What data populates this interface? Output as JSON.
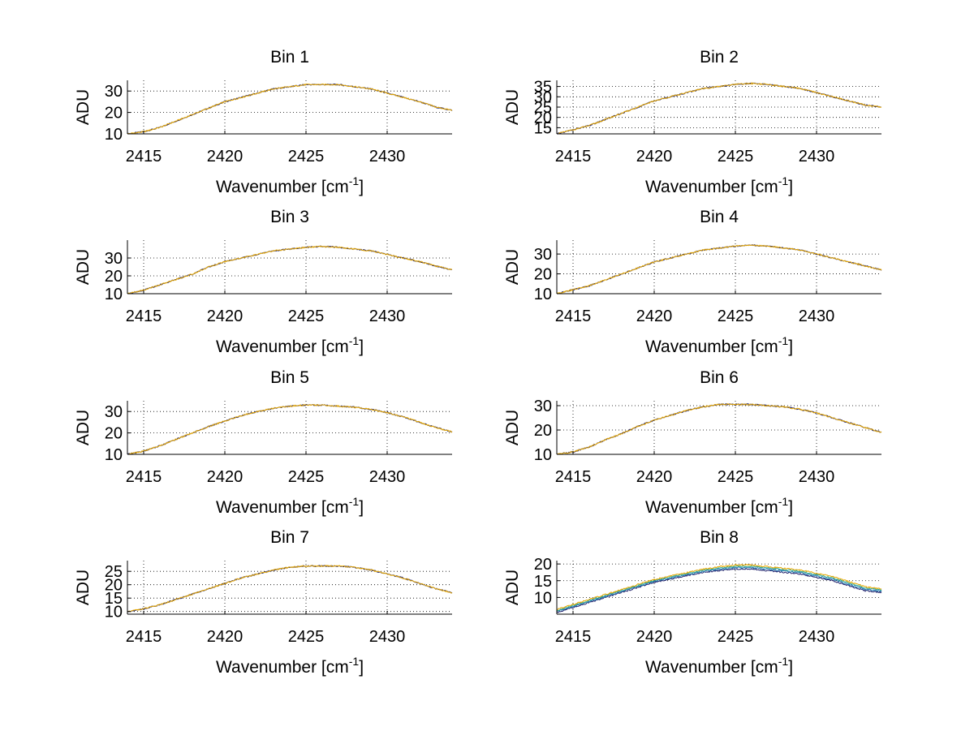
{
  "figure": {
    "background": "#ffffff",
    "grid_color": "#000000"
  },
  "chart_data": [
    {
      "type": "line",
      "title": "Bin 1",
      "xlabel": "Wavenumber [cm",
      "xlabel_sup": "-1",
      "xlabel_end": "]",
      "ylabel": "ADU",
      "xlim": [
        2414,
        2434
      ],
      "ylim": [
        10,
        35
      ],
      "xticks": [
        2415,
        2420,
        2425,
        2430
      ],
      "yticks": [
        10,
        20,
        30
      ],
      "grid": true,
      "series": [
        {
          "name": "line-1",
          "color": "#1f1f6a",
          "values": [
            10,
            11,
            13,
            16,
            19,
            22,
            25,
            27,
            29,
            31,
            32,
            33,
            33,
            33,
            32,
            31,
            29,
            27,
            25,
            22.5,
            21
          ]
        },
        {
          "name": "line-2",
          "color": "#e6a800",
          "values": [
            10,
            11,
            13,
            16,
            19,
            22,
            25,
            27,
            29,
            31,
            32,
            33,
            33,
            33,
            32,
            31,
            29,
            27,
            25,
            22.5,
            21
          ]
        }
      ],
      "x": [
        2414,
        2415,
        2416,
        2417,
        2418,
        2419,
        2420,
        2421,
        2422,
        2423,
        2424,
        2425,
        2426,
        2427,
        2428,
        2429,
        2430,
        2431,
        2432,
        2433,
        2434
      ]
    },
    {
      "type": "line",
      "title": "Bin 2",
      "xlabel": "Wavenumber [cm",
      "xlabel_sup": "-1",
      "xlabel_end": "]",
      "ylabel": "ADU",
      "xlim": [
        2414,
        2434
      ],
      "ylim": [
        12,
        38
      ],
      "xticks": [
        2415,
        2420,
        2425,
        2430
      ],
      "yticks": [
        15,
        20,
        25,
        30,
        35
      ],
      "grid": true,
      "series": [
        {
          "name": "line-1",
          "color": "#1f1f6a",
          "values": [
            12,
            14,
            16,
            19,
            22,
            25,
            28,
            30,
            32,
            34,
            35,
            36,
            36.5,
            36,
            35,
            34,
            32,
            30,
            28,
            26,
            25
          ]
        },
        {
          "name": "line-2",
          "color": "#e6a800",
          "values": [
            12,
            14,
            16,
            19,
            22,
            25,
            28,
            30,
            32,
            34,
            35,
            36,
            36.5,
            36,
            35,
            34,
            32,
            30,
            28,
            26,
            25
          ]
        }
      ],
      "x": [
        2414,
        2415,
        2416,
        2417,
        2418,
        2419,
        2420,
        2421,
        2422,
        2423,
        2424,
        2425,
        2426,
        2427,
        2428,
        2429,
        2430,
        2431,
        2432,
        2433,
        2434
      ]
    },
    {
      "type": "line",
      "title": "Bin 3",
      "xlabel": "Wavenumber [cm",
      "xlabel_sup": "-1",
      "xlabel_end": "]",
      "ylabel": "ADU",
      "xlim": [
        2414,
        2434
      ],
      "ylim": [
        10,
        40
      ],
      "xticks": [
        2415,
        2420,
        2425,
        2430
      ],
      "yticks": [
        10,
        20,
        30
      ],
      "grid": true,
      "series": [
        {
          "name": "line-1",
          "color": "#1f1f6a",
          "values": [
            10,
            12,
            15,
            18,
            21,
            25,
            28,
            30,
            32,
            34,
            35,
            36,
            36.5,
            36,
            35,
            34,
            32,
            30,
            28,
            25.5,
            23.5
          ]
        },
        {
          "name": "line-2",
          "color": "#e6a800",
          "values": [
            10,
            12,
            15,
            18,
            21,
            25,
            28,
            30,
            32,
            34,
            35,
            36,
            36.5,
            36,
            35,
            34,
            32,
            30,
            28,
            25.5,
            23.5
          ]
        }
      ],
      "x": [
        2414,
        2415,
        2416,
        2417,
        2418,
        2419,
        2420,
        2421,
        2422,
        2423,
        2424,
        2425,
        2426,
        2427,
        2428,
        2429,
        2430,
        2431,
        2432,
        2433,
        2434
      ]
    },
    {
      "type": "line",
      "title": "Bin 4",
      "xlabel": "Wavenumber [cm",
      "xlabel_sup": "-1",
      "xlabel_end": "]",
      "ylabel": "ADU",
      "xlim": [
        2414,
        2434
      ],
      "ylim": [
        10,
        37
      ],
      "xticks": [
        2415,
        2420,
        2425,
        2430
      ],
      "yticks": [
        10,
        20,
        30
      ],
      "grid": true,
      "series": [
        {
          "name": "line-1",
          "color": "#1f1f6a",
          "values": [
            10,
            12,
            14,
            17,
            20,
            23,
            26,
            28,
            30,
            32,
            33,
            34,
            34.5,
            34,
            33,
            32,
            30,
            28,
            26,
            24,
            22
          ]
        },
        {
          "name": "line-2",
          "color": "#e6a800",
          "values": [
            10,
            12,
            14,
            17,
            20,
            23,
            26,
            28,
            30,
            32,
            33,
            34,
            34.5,
            34,
            33,
            32,
            30,
            28,
            26,
            24,
            22
          ]
        }
      ],
      "x": [
        2414,
        2415,
        2416,
        2417,
        2418,
        2419,
        2420,
        2421,
        2422,
        2423,
        2424,
        2425,
        2426,
        2427,
        2428,
        2429,
        2430,
        2431,
        2432,
        2433,
        2434
      ]
    },
    {
      "type": "line",
      "title": "Bin 5",
      "xlabel": "Wavenumber [cm",
      "xlabel_sup": "-1",
      "xlabel_end": "]",
      "ylabel": "ADU",
      "xlim": [
        2414,
        2434
      ],
      "ylim": [
        10,
        35
      ],
      "xticks": [
        2415,
        2420,
        2425,
        2430
      ],
      "yticks": [
        10,
        20,
        30
      ],
      "grid": true,
      "series": [
        {
          "name": "line-1",
          "color": "#1f1f6a",
          "values": [
            10,
            11.5,
            14,
            17,
            20,
            23,
            25.5,
            28,
            30,
            31.5,
            32.5,
            33,
            33,
            32.5,
            32,
            31,
            29.5,
            27.5,
            25,
            22.5,
            20.5
          ]
        },
        {
          "name": "line-2",
          "color": "#e6a800",
          "values": [
            10,
            11.5,
            14,
            17,
            20,
            23,
            25.5,
            28,
            30,
            31.5,
            32.5,
            33,
            33,
            32.5,
            32,
            31,
            29.5,
            27.5,
            25,
            22.5,
            20.5
          ]
        }
      ],
      "x": [
        2414,
        2415,
        2416,
        2417,
        2418,
        2419,
        2420,
        2421,
        2422,
        2423,
        2424,
        2425,
        2426,
        2427,
        2428,
        2429,
        2430,
        2431,
        2432,
        2433,
        2434
      ]
    },
    {
      "type": "line",
      "title": "Bin 6",
      "xlabel": "Wavenumber [cm",
      "xlabel_sup": "-1",
      "xlabel_end": "]",
      "ylabel": "ADU",
      "xlim": [
        2414,
        2434
      ],
      "ylim": [
        10,
        32
      ],
      "xticks": [
        2415,
        2420,
        2425,
        2430
      ],
      "yticks": [
        10,
        20,
        30
      ],
      "grid": true,
      "series": [
        {
          "name": "line-1",
          "color": "#1f1f6a",
          "values": [
            10,
            11,
            13,
            16,
            18.5,
            21.5,
            24,
            26,
            28,
            29.5,
            30.5,
            30.5,
            30.5,
            30,
            29.5,
            28.5,
            27,
            25,
            23,
            21,
            19
          ]
        },
        {
          "name": "line-2",
          "color": "#e6a800",
          "values": [
            10,
            11,
            13,
            16,
            18.5,
            21.5,
            24,
            26,
            28,
            29.5,
            30.5,
            30.5,
            30.5,
            30,
            29.5,
            28.5,
            27,
            25,
            23,
            21,
            19
          ]
        }
      ],
      "x": [
        2414,
        2415,
        2416,
        2417,
        2418,
        2419,
        2420,
        2421,
        2422,
        2423,
        2424,
        2425,
        2426,
        2427,
        2428,
        2429,
        2430,
        2431,
        2432,
        2433,
        2434
      ]
    },
    {
      "type": "line",
      "title": "Bin 7",
      "xlabel": "Wavenumber [cm",
      "xlabel_sup": "-1",
      "xlabel_end": "]",
      "ylabel": "ADU",
      "xlim": [
        2414,
        2434
      ],
      "ylim": [
        9,
        29
      ],
      "xticks": [
        2415,
        2420,
        2425,
        2430
      ],
      "yticks": [
        10,
        15,
        20,
        25
      ],
      "grid": true,
      "series": [
        {
          "name": "line-1",
          "color": "#1f1f6a",
          "values": [
            10,
            11,
            12.5,
            14.5,
            16.5,
            18.5,
            20.5,
            22.5,
            24,
            25.5,
            26.5,
            27,
            27,
            27,
            26.5,
            25.5,
            24,
            22.5,
            20.5,
            18.5,
            17
          ]
        },
        {
          "name": "line-2",
          "color": "#e6a800",
          "values": [
            10,
            11,
            12.5,
            14.5,
            16.5,
            18.5,
            20.5,
            22.5,
            24,
            25.5,
            26.5,
            27,
            27,
            27,
            26.5,
            25.5,
            24,
            22.5,
            20.5,
            18.5,
            17
          ]
        }
      ],
      "x": [
        2414,
        2415,
        2416,
        2417,
        2418,
        2419,
        2420,
        2421,
        2422,
        2423,
        2424,
        2425,
        2426,
        2427,
        2428,
        2429,
        2430,
        2431,
        2432,
        2433,
        2434
      ]
    },
    {
      "type": "line",
      "title": "Bin 8",
      "xlabel": "Wavenumber [cm",
      "xlabel_sup": "-1",
      "xlabel_end": "]",
      "ylabel": "ADU",
      "xlim": [
        2414,
        2434
      ],
      "ylim": [
        5,
        21
      ],
      "xticks": [
        2415,
        2420,
        2425,
        2430
      ],
      "yticks": [
        10,
        15,
        20
      ],
      "grid": true,
      "series": [
        {
          "name": "line-1",
          "color": "#1f1f6a",
          "values": [
            5.5,
            7,
            8.5,
            10,
            11.5,
            13,
            14.5,
            15.5,
            16.5,
            17.5,
            18,
            18.5,
            18.5,
            18,
            17.5,
            17,
            16,
            15,
            13.5,
            12,
            11.5
          ]
        },
        {
          "name": "line-2",
          "color": "#1f77b4",
          "values": [
            5.8,
            7.3,
            8.8,
            10.3,
            11.8,
            13.3,
            14.8,
            15.8,
            16.8,
            17.8,
            18.4,
            18.9,
            18.9,
            18.4,
            17.9,
            17.4,
            16.4,
            15.4,
            13.9,
            12.4,
            11.9
          ]
        },
        {
          "name": "line-3",
          "color": "#2ca58d",
          "values": [
            6.1,
            7.6,
            9.1,
            10.6,
            12.1,
            13.6,
            15.1,
            16.1,
            17.1,
            18.1,
            18.8,
            19.3,
            19.3,
            18.8,
            18.3,
            17.8,
            16.8,
            15.8,
            14.3,
            12.8,
            12.2
          ]
        },
        {
          "name": "line-4",
          "color": "#e6a800",
          "values": [
            6.4,
            7.9,
            9.4,
            10.9,
            12.4,
            13.9,
            15.4,
            16.4,
            17.4,
            18.4,
            19.2,
            19.7,
            19.7,
            19.2,
            18.7,
            18.2,
            17.2,
            16.2,
            14.7,
            13.2,
            12.5
          ]
        }
      ],
      "x": [
        2414,
        2415,
        2416,
        2417,
        2418,
        2419,
        2420,
        2421,
        2422,
        2423,
        2424,
        2425,
        2426,
        2427,
        2428,
        2429,
        2430,
        2431,
        2432,
        2433,
        2434
      ]
    }
  ]
}
